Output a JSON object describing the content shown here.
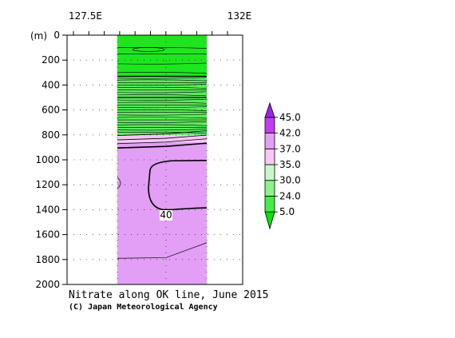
{
  "chart_data": {
    "type": "heatmap",
    "title": "Nitrate along OK line, June 2015",
    "credit": "(C) Japan Meteorological Agency",
    "x_tick_labels": [
      "127.5E",
      "132E"
    ],
    "ylabel": "(m)",
    "y_ticks": [
      0,
      200,
      400,
      600,
      800,
      1000,
      1200,
      1400,
      1600,
      1800,
      2000
    ],
    "ylim": [
      2000,
      0
    ],
    "y_reversed": true,
    "contour_label": "40",
    "colorbar": {
      "levels": [
        "5.0",
        "24.0",
        "30.0",
        "35.0",
        "37.0",
        "42.0",
        "45.0"
      ],
      "colors": [
        "#00e600",
        "#46ed46",
        "#8cf28c",
        "#c8f8c8",
        "#f7c8f7",
        "#e39ef5",
        "#c33cf0",
        "#a020f0"
      ]
    },
    "zones": [
      {
        "from_depth": 0,
        "to_depth": 330,
        "color": "#1ee61e"
      },
      {
        "from_depth": 330,
        "to_depth": 800,
        "color": "#5aeb5a"
      },
      {
        "from_depth": 800,
        "to_depth": 860,
        "color": "#f6c6f6"
      },
      {
        "from_depth": 860,
        "to_depth": 2000,
        "color": "#e39ef5"
      }
    ]
  }
}
